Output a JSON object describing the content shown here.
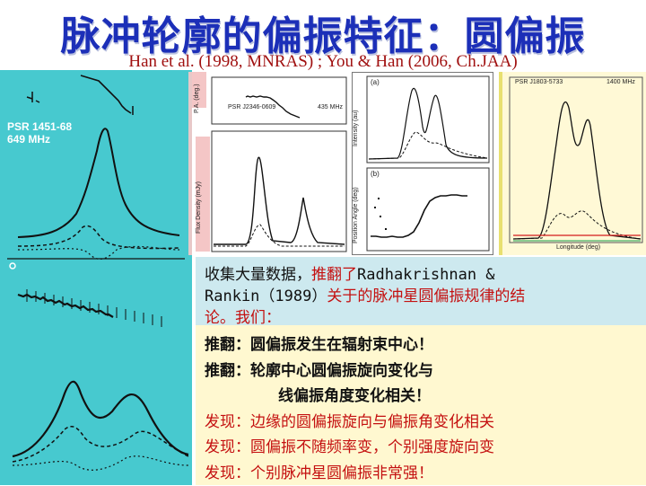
{
  "slide": {
    "title": "脉冲轮廓的偏振特征：圆偏振",
    "subtitle": "Han et al. (1998, MNRAS) ; You & Han (2006, Ch.JAA)"
  },
  "figures": {
    "left": {
      "psr_name": "PSR 1451-68",
      "frequency": "649 MHz"
    },
    "middle": {
      "psr_name": "PSR J2346-0609",
      "frequency": "435 MHz",
      "ylabel_top": "P.A. (deg.)",
      "ylabel_bottom": "Flux Density (mJy)"
    },
    "right_center": {
      "panel_a": "(a)",
      "panel_b": "(b)",
      "ylabel_top": "Intensity (au)",
      "ylabel_bottom": "Position Angle (deg)"
    },
    "right": {
      "psr_name": "PSR J1803-5733",
      "frequency": "1400 MHz",
      "xlabel": "Longitude (deg)"
    }
  },
  "notes": {
    "cyan_box": {
      "line1_black": "收集大量数据，",
      "line1_red": "推翻了",
      "line1_black2": "Radhakrishnan &",
      "line2_black": "Rankin（1989）",
      "line2_red": "关于的脉冲星圆偏振规律的结",
      "line3": "论。我们："
    },
    "yellow_box": {
      "items": [
        "推翻：圆偏振发生在辐射束中心！",
        "推翻：轮廓中心圆偏振旋向变化与",
        "线偏振角度变化相关！"
      ],
      "findings": [
        "发现：边缘的圆偏振旋向与偏振角变化相关",
        "发现：圆偏振不随频率变，个别强度旋向变",
        "发现：个别脉冲星圆偏振非常强！"
      ]
    }
  },
  "colors": {
    "title": "#1c2fb8",
    "subtitle": "#a01010",
    "left_panel": "#47c9cf",
    "highlight_red": "#c41010",
    "text_box_cyan": "#cde9ef",
    "text_box_yellow": "#fff8d0"
  }
}
